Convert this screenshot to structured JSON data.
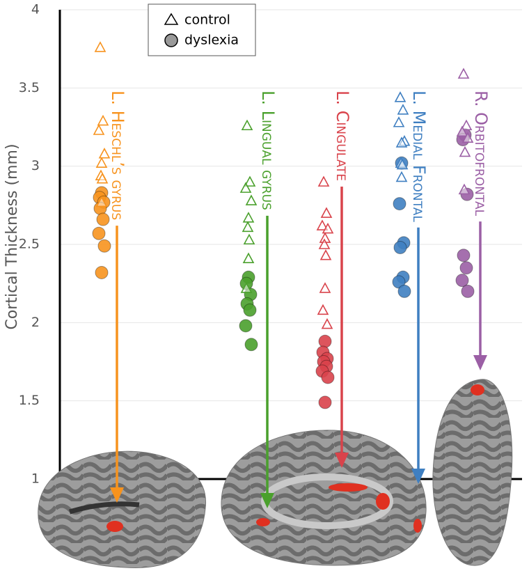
{
  "chart_data": {
    "type": "scatter",
    "ylabel": "Cortical Thickness (mm)",
    "ylim": [
      1,
      4
    ],
    "yticks": [
      1,
      1.5,
      2,
      2.5,
      3,
      3.5,
      4
    ],
    "legend": [
      "control",
      "dyslexia"
    ],
    "groups": [
      {
        "name": "L. Heschl’s gyrus",
        "color": "#f7931e",
        "control": [
          3.76,
          3.29,
          3.23,
          3.08,
          3.02,
          2.94,
          2.92,
          2.77
        ],
        "dyslexia": [
          2.83,
          2.8,
          2.77,
          2.73,
          2.66,
          2.57,
          2.49,
          2.32
        ]
      },
      {
        "name": "L. Lingual gyrus",
        "color": "#4aa02c",
        "control": [
          3.26,
          2.9,
          2.86,
          2.78,
          2.67,
          2.61,
          2.53,
          2.41,
          2.22
        ],
        "dyslexia": [
          2.29,
          2.25,
          2.18,
          2.12,
          2.08,
          1.98,
          1.86
        ]
      },
      {
        "name": "L. Cingulate",
        "color": "#d9434b",
        "control": [
          2.9,
          2.7,
          2.62,
          2.6,
          2.54,
          2.5,
          2.43,
          2.22,
          2.08,
          1.99
        ],
        "dyslexia": [
          1.88,
          1.81,
          1.77,
          1.75,
          1.72,
          1.69,
          1.65,
          1.49
        ]
      },
      {
        "name": "L. Medial Frontal",
        "color": "#3f7fc1",
        "control": [
          3.44,
          3.36,
          3.28,
          3.16,
          3.15,
          3.02,
          3.01,
          2.93
        ],
        "dyslexia": [
          3.02,
          2.76,
          2.51,
          2.48,
          2.29,
          2.26,
          2.2
        ]
      },
      {
        "name": "R. Orbitofrontal",
        "color": "#9b5fa5",
        "control": [
          3.59,
          3.26,
          3.22,
          3.18,
          3.09,
          2.85
        ],
        "dyslexia": [
          3.2,
          3.17,
          2.82,
          2.43,
          2.35,
          2.27,
          2.2
        ]
      }
    ]
  }
}
